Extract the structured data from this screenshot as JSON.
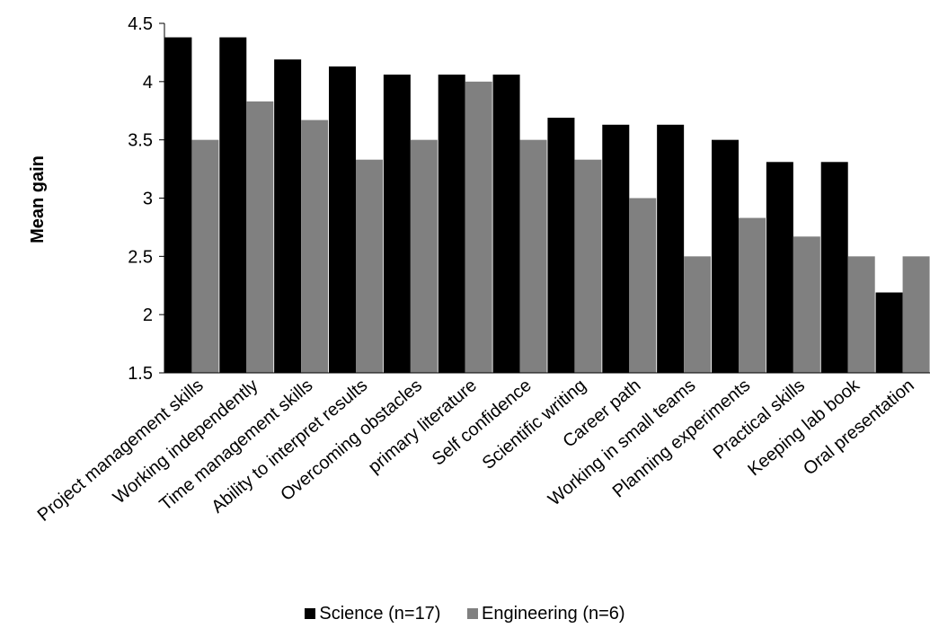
{
  "chart_data": {
    "type": "bar",
    "title": "",
    "xlabel": "",
    "ylabel": "Mean gain",
    "ylim": [
      1.5,
      4.5
    ],
    "yticks": [
      "1.5",
      "2",
      "2.5",
      "3",
      "3.5",
      "4",
      "4.5"
    ],
    "grid": false,
    "legend_position": "bottom",
    "categories": [
      "Project management skills",
      "Working independently",
      "Time management skills",
      "Ability to interpret results",
      "Overcoming obstacles",
      "primary literature",
      "Self confidence",
      "Scientific writing",
      "Career path",
      "Working in small teams",
      "Planning experiments",
      "Practical skills",
      "Keeping lab book",
      "Oral presentation"
    ],
    "series": [
      {
        "name": "Science (n=17)",
        "color": "#000000",
        "values": [
          4.38,
          4.38,
          4.19,
          4.13,
          4.06,
          4.06,
          4.06,
          3.69,
          3.63,
          3.63,
          3.5,
          3.31,
          3.31,
          2.19
        ]
      },
      {
        "name": "Engineering (n=6)",
        "color": "#808080",
        "values": [
          3.5,
          3.83,
          3.67,
          3.33,
          3.5,
          4.0,
          3.5,
          3.33,
          3.0,
          2.5,
          2.83,
          2.67,
          2.5,
          2.5
        ]
      }
    ]
  }
}
